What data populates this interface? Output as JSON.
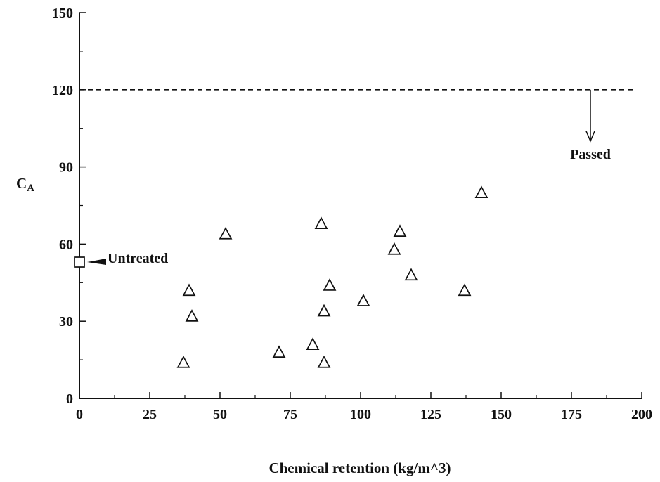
{
  "chart_data": {
    "type": "scatter",
    "xlabel": "Chemical retention (kg/m^3)",
    "ylabel_main": "C",
    "ylabel_sub": "A",
    "xlim": [
      0,
      200
    ],
    "ylim": [
      0,
      150
    ],
    "x_ticks": [
      0,
      25,
      50,
      75,
      100,
      125,
      150,
      175,
      200
    ],
    "y_ticks": [
      0,
      30,
      60,
      90,
      120,
      150
    ],
    "grid": false,
    "series": [
      {
        "marker": "triangle",
        "points": [
          {
            "x": 37,
            "y": 14
          },
          {
            "x": 39,
            "y": 42
          },
          {
            "x": 40,
            "y": 32
          },
          {
            "x": 52,
            "y": 64
          },
          {
            "x": 71,
            "y": 18
          },
          {
            "x": 83,
            "y": 21
          },
          {
            "x": 86,
            "y": 68
          },
          {
            "x": 87,
            "y": 34
          },
          {
            "x": 87,
            "y": 14
          },
          {
            "x": 89,
            "y": 44
          },
          {
            "x": 101,
            "y": 38
          },
          {
            "x": 112,
            "y": 58
          },
          {
            "x": 114,
            "y": 65
          },
          {
            "x": 118,
            "y": 48
          },
          {
            "x": 137,
            "y": 42
          },
          {
            "x": 143,
            "y": 80
          }
        ]
      },
      {
        "marker": "square",
        "points": [
          {
            "x": 0,
            "y": 53
          }
        ]
      }
    ],
    "reference_line": {
      "y": 120,
      "style": "dashed"
    },
    "annotations": {
      "untreated": "Untreated",
      "passed": "Passed"
    }
  }
}
